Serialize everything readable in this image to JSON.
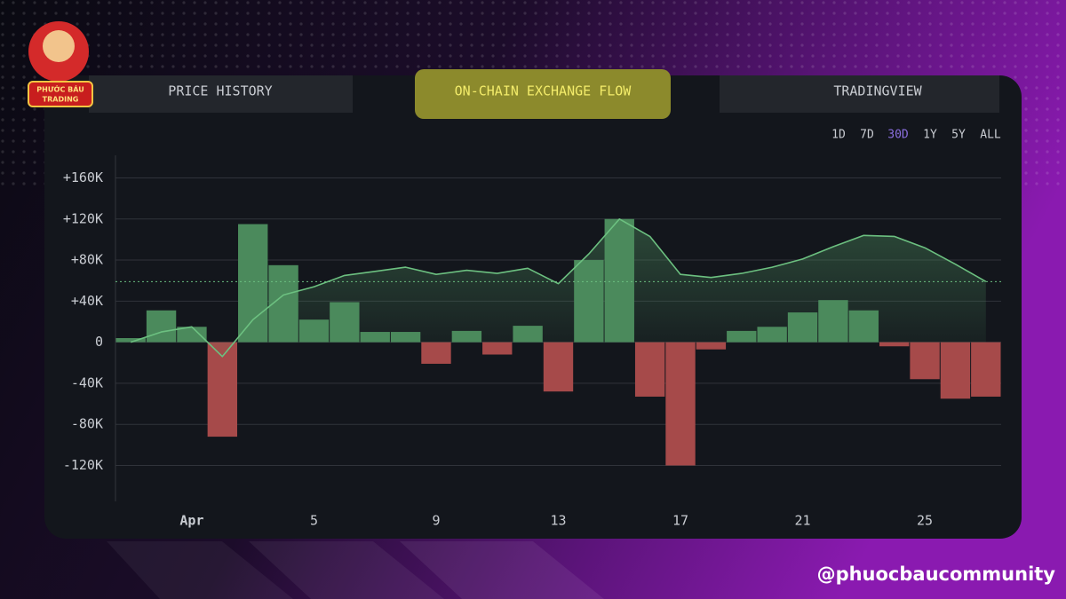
{
  "logo_text": [
    "PHƯỚC BÁU",
    "TRADING"
  ],
  "tabs": [
    "PRICE HISTORY",
    "ON-CHAIN EXCHANGE FLOW",
    "TRADINGVIEW"
  ],
  "active_tab": 1,
  "range_buttons": [
    "1D",
    "7D",
    "30D",
    "1Y",
    "5Y",
    "ALL"
  ],
  "active_range": 2,
  "handle": "@phuocbaucommunity",
  "chart_data": {
    "type": "bar",
    "categories": [
      null,
      null,
      "Apr",
      null,
      null,
      null,
      "5",
      null,
      null,
      null,
      "9",
      null,
      null,
      null,
      "13",
      null,
      null,
      null,
      "17",
      null,
      null,
      null,
      "21",
      null,
      null,
      null,
      "25",
      null,
      null
    ],
    "values": [
      4000,
      31000,
      15000,
      -92000,
      115000,
      75000,
      22000,
      39000,
      10000,
      10000,
      -21000,
      11000,
      -12000,
      16000,
      -48000,
      80000,
      120000,
      -53000,
      -120000,
      -7000,
      11000,
      15000,
      29000,
      41000,
      31000,
      -4000,
      -36000,
      -55000,
      -53000
    ],
    "positive_color": "#4b8a5c",
    "negative_color": "#a64a4a",
    "line": {
      "color": "#6cc080",
      "values": [
        0,
        10000,
        15000,
        -14000,
        22000,
        46000,
        54000,
        65000,
        69000,
        73000,
        66000,
        70000,
        67000,
        72000,
        57000,
        86000,
        120000,
        103000,
        66000,
        63000,
        67000,
        73000,
        81000,
        93000,
        104000,
        103000,
        92000,
        76000,
        59000
      ]
    },
    "reference_line": 59000,
    "ylim": [
      -155000,
      182000
    ],
    "yticks": [
      {
        "value": -120000,
        "label": "-120K"
      },
      {
        "value": -80000,
        "label": "-80K"
      },
      {
        "value": -40000,
        "label": "-40K"
      },
      0,
      {
        "value": 40000,
        "label": "+40K"
      },
      {
        "value": 80000,
        "label": "+80K"
      },
      {
        "value": 120000,
        "label": "+120K"
      },
      {
        "value": 160000,
        "label": "+160K"
      }
    ],
    "grid": true
  }
}
